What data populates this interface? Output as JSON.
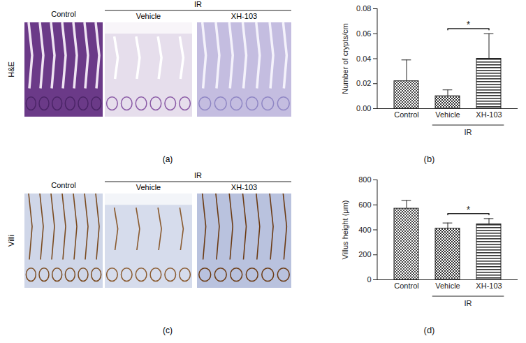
{
  "panels": [
    {
      "label": "(a)",
      "row_label": "H&E",
      "columns": [
        "Control",
        "Vehicle",
        "XH-103"
      ],
      "group": {
        "label": "IR",
        "columns": [
          "Vehicle",
          "XH-103"
        ]
      }
    },
    {
      "label": "(c)",
      "row_label": "Villi",
      "columns": [
        "Control",
        "Vehicle",
        "XH-103"
      ],
      "group": {
        "label": "IR",
        "columns": [
          "Vehicle",
          "XH-103"
        ]
      }
    }
  ],
  "chart_data": [
    {
      "panel": "(b)",
      "type": "bar",
      "y_label": "Number of crypts/cm",
      "categories": [
        "Control",
        "Vehicle",
        "XH-103"
      ],
      "values": [
        0.022,
        0.01,
        0.04
      ],
      "errors": [
        0.017,
        0.005,
        0.02
      ],
      "ylim": [
        0,
        0.08
      ],
      "yticks": [
        {
          "value": 0,
          "label": "0.00"
        },
        {
          "value": 0.02,
          "label": "0.02"
        },
        {
          "value": 0.04,
          "label": "0.04"
        },
        {
          "value": 0.06,
          "label": "0.06"
        },
        {
          "value": 0.08,
          "label": "0.08"
        }
      ],
      "group": {
        "label": "IR",
        "categories": [
          "Vehicle",
          "XH-103"
        ]
      },
      "significance": [
        {
          "categories": [
            "Vehicle",
            "XH-103"
          ],
          "label": "*"
        }
      ]
    },
    {
      "panel": "(d)",
      "type": "bar",
      "y_label": "Villus height (μm)",
      "categories": [
        "Control",
        "Vehicle",
        "XH-103"
      ],
      "values": [
        570,
        410,
        445
      ],
      "errors": [
        65,
        45,
        45
      ],
      "ylim": [
        0,
        800
      ],
      "yticks": [
        0,
        200,
        400,
        600,
        800
      ],
      "group": {
        "label": "IR",
        "categories": [
          "Vehicle",
          "XH-103"
        ]
      },
      "significance": [
        {
          "categories": [
            "Vehicle",
            "XH-103"
          ],
          "label": "*"
        }
      ]
    }
  ]
}
